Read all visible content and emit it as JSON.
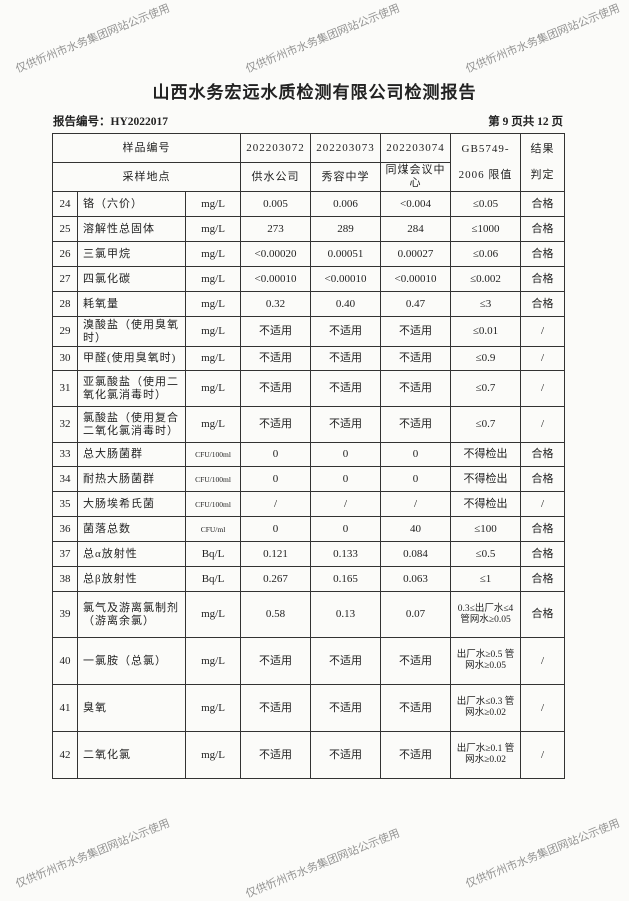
{
  "title": "山西水务宏远水质检测有限公司检测报告",
  "report_no": "报告编号：HY2022017",
  "page_no": "第 9 页共 12 页",
  "watermark": "仅供忻州市水务集团网站公示使用",
  "header": {
    "sample_no_label": "样品编号",
    "site_label": "采样地点",
    "samples": [
      "202203072",
      "202203073",
      "202203074"
    ],
    "sites": [
      "供水公司",
      "秀容中学",
      "同煤会议中心"
    ],
    "limit_label_1": "GB5749-",
    "limit_label_2": "2006 限值",
    "result_label_1": "结果",
    "result_label_2": "判定"
  },
  "rows": [
    {
      "no": "24",
      "name": "铬（六价）",
      "unit": "mg/L",
      "v1": "0.005",
      "v2": "0.006",
      "v3": "<0.004",
      "limit": "≤0.05",
      "result": "合格"
    },
    {
      "no": "25",
      "name": "溶解性总固体",
      "unit": "mg/L",
      "v1": "273",
      "v2": "289",
      "v3": "284",
      "limit": "≤1000",
      "result": "合格"
    },
    {
      "no": "26",
      "name": "三氯甲烷",
      "unit": "mg/L",
      "v1": "<0.00020",
      "v2": "0.00051",
      "v3": "0.00027",
      "limit": "≤0.06",
      "result": "合格"
    },
    {
      "no": "27",
      "name": "四氯化碳",
      "unit": "mg/L",
      "v1": "<0.00010",
      "v2": "<0.00010",
      "v3": "<0.00010",
      "limit": "≤0.002",
      "result": "合格"
    },
    {
      "no": "28",
      "name": "耗氧量",
      "unit": "mg/L",
      "v1": "0.32",
      "v2": "0.40",
      "v3": "0.47",
      "limit": "≤3",
      "result": "合格"
    },
    {
      "no": "29",
      "name": "溴酸盐（使用臭氧时）",
      "unit": "mg/L",
      "v1": "不适用",
      "v2": "不适用",
      "v3": "不适用",
      "limit": "≤0.01",
      "result": "/"
    },
    {
      "no": "30",
      "name": "甲醛(使用臭氧时)",
      "unit": "mg/L",
      "v1": "不适用",
      "v2": "不适用",
      "v3": "不适用",
      "limit": "≤0.9",
      "result": "/"
    },
    {
      "no": "31",
      "name": "亚氯酸盐（使用二氧化氯消毒时）",
      "unit": "mg/L",
      "v1": "不适用",
      "v2": "不适用",
      "v3": "不适用",
      "limit": "≤0.7",
      "result": "/"
    },
    {
      "no": "32",
      "name": "氯酸盐（使用复合二氧化氯消毒时）",
      "unit": "mg/L",
      "v1": "不适用",
      "v2": "不适用",
      "v3": "不适用",
      "limit": "≤0.7",
      "result": "/"
    },
    {
      "no": "33",
      "name": "总大肠菌群",
      "unit": "CFU/100ml",
      "v1": "0",
      "v2": "0",
      "v3": "0",
      "limit": "不得检出",
      "result": "合格"
    },
    {
      "no": "34",
      "name": "耐热大肠菌群",
      "unit": "CFU/100ml",
      "v1": "0",
      "v2": "0",
      "v3": "0",
      "limit": "不得检出",
      "result": "合格"
    },
    {
      "no": "35",
      "name": "大肠埃希氏菌",
      "unit": "CFU/100ml",
      "v1": "/",
      "v2": "/",
      "v3": "/",
      "limit": "不得检出",
      "result": "/"
    },
    {
      "no": "36",
      "name": "菌落总数",
      "unit": "CFU/ml",
      "v1": "0",
      "v2": "0",
      "v3": "40",
      "limit": "≤100",
      "result": "合格"
    },
    {
      "no": "37",
      "name": "总α放射性",
      "unit": "Bq/L",
      "v1": "0.121",
      "v2": "0.133",
      "v3": "0.084",
      "limit": "≤0.5",
      "result": "合格"
    },
    {
      "no": "38",
      "name": "总β放射性",
      "unit": "Bq/L",
      "v1": "0.267",
      "v2": "0.165",
      "v3": "0.063",
      "limit": "≤1",
      "result": "合格"
    },
    {
      "no": "39",
      "name": "氯气及游离氯制剂（游离余氯）",
      "unit": "mg/L",
      "v1": "0.58",
      "v2": "0.13",
      "v3": "0.07",
      "limit": "0.3≤出厂水≤4 管网水≥0.05",
      "result": "合格"
    },
    {
      "no": "40",
      "name": "一氯胺（总氯）",
      "unit": "mg/L",
      "v1": "不适用",
      "v2": "不适用",
      "v3": "不适用",
      "limit": "出厂水≥0.5 管网水≥0.05",
      "result": "/"
    },
    {
      "no": "41",
      "name": "臭氧",
      "unit": "mg/L",
      "v1": "不适用",
      "v2": "不适用",
      "v3": "不适用",
      "limit": "出厂水≤0.3 管网水≥0.02",
      "result": "/"
    },
    {
      "no": "42",
      "name": "二氧化氯",
      "unit": "mg/L",
      "v1": "不适用",
      "v2": "不适用",
      "v3": "不适用",
      "limit": "出厂水≥0.1 管网水≥0.02",
      "result": "/"
    }
  ]
}
